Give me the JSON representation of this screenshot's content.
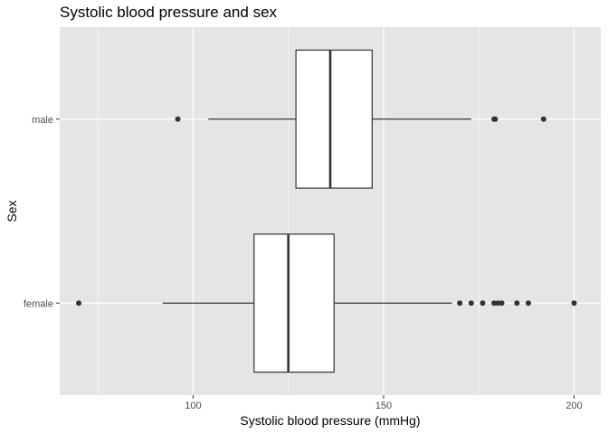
{
  "chart_data": {
    "type": "boxplot",
    "title": "Systolic blood pressure and sex",
    "xlabel": "Systolic blood pressure (mmHg)",
    "ylabel": "Sex",
    "xlim": [
      65,
      207
    ],
    "x_ticks": [
      100,
      150,
      200
    ],
    "x_minor_ticks": [
      75,
      125,
      175
    ],
    "categories": [
      "female",
      "male"
    ],
    "boxes": [
      {
        "category": "male",
        "whisker_low": 104,
        "q1": 127,
        "median": 136,
        "q3": 147,
        "whisker_high": 173,
        "outliers": [
          96,
          179,
          179.3,
          192
        ]
      },
      {
        "category": "female",
        "whisker_low": 92,
        "q1": 116,
        "median": 125,
        "q3": 137,
        "whisker_high": 168,
        "outliers": [
          70,
          170,
          173,
          176,
          179,
          180,
          181,
          185,
          188,
          200
        ]
      }
    ],
    "colors": {
      "panel": "#e5e5e5",
      "grid": "#ffffff",
      "box_fill": "#ffffff",
      "box_line": "#333333",
      "outlier": "#333333"
    },
    "grid": true,
    "legend": "none"
  }
}
